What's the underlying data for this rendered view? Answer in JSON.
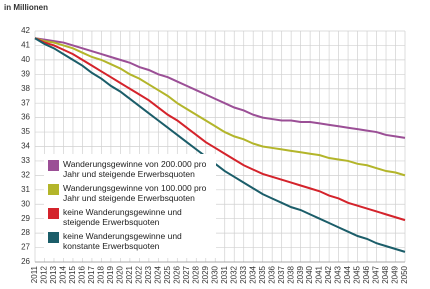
{
  "chart_data": {
    "type": "line",
    "y_label": "in Millionen",
    "x": [
      2011,
      2012,
      2013,
      2014,
      2015,
      2016,
      2017,
      2018,
      2019,
      2020,
      2021,
      2022,
      2023,
      2024,
      2025,
      2026,
      2027,
      2028,
      2029,
      2030,
      2031,
      2032,
      2033,
      2034,
      2035,
      2036,
      2037,
      2038,
      2039,
      2040,
      2041,
      2042,
      2043,
      2044,
      2045,
      2046,
      2047,
      2048,
      2049,
      2050
    ],
    "xlim": [
      2011,
      2050
    ],
    "ylim": [
      26,
      42
    ],
    "yticks": [
      26,
      27,
      28,
      29,
      30,
      31,
      32,
      33,
      34,
      35,
      36,
      37,
      38,
      39,
      40,
      41,
      42
    ],
    "grid": true,
    "series": [
      {
        "name": "Wanderungsgewinne von 200.000 pro Jahr und steigende Erwerbsquoten",
        "color": "#9b4f96",
        "values": [
          41.5,
          41.4,
          41.3,
          41.2,
          41.0,
          40.8,
          40.6,
          40.4,
          40.2,
          40.0,
          39.8,
          39.5,
          39.3,
          39.0,
          38.8,
          38.5,
          38.2,
          37.9,
          37.6,
          37.3,
          37.0,
          36.7,
          36.5,
          36.2,
          36.0,
          35.9,
          35.8,
          35.8,
          35.7,
          35.7,
          35.6,
          35.5,
          35.4,
          35.3,
          35.2,
          35.1,
          35.0,
          34.8,
          34.7,
          34.6
        ]
      },
      {
        "name": "Wanderungsgewinne von 100.000 pro Jahr und steigende Erwerbsquoten",
        "color": "#b3b52a",
        "values": [
          41.5,
          41.3,
          41.2,
          41.0,
          40.8,
          40.5,
          40.2,
          40.0,
          39.7,
          39.4,
          39.0,
          38.7,
          38.3,
          37.9,
          37.5,
          37.0,
          36.6,
          36.2,
          35.8,
          35.4,
          35.0,
          34.7,
          34.5,
          34.2,
          34.0,
          33.9,
          33.8,
          33.7,
          33.6,
          33.5,
          33.4,
          33.2,
          33.1,
          33.0,
          32.8,
          32.7,
          32.5,
          32.3,
          32.2,
          32.0
        ]
      },
      {
        "name": "keine Wanderungsgewinne und steigende Erwerbsquoten",
        "color": "#d4232b",
        "values": [
          41.5,
          41.2,
          41.0,
          40.7,
          40.4,
          40.0,
          39.6,
          39.2,
          38.8,
          38.4,
          38.0,
          37.6,
          37.2,
          36.7,
          36.2,
          35.8,
          35.3,
          34.8,
          34.3,
          33.9,
          33.5,
          33.1,
          32.7,
          32.4,
          32.1,
          31.9,
          31.7,
          31.5,
          31.3,
          31.1,
          30.9,
          30.6,
          30.4,
          30.1,
          29.9,
          29.7,
          29.5,
          29.3,
          29.1,
          28.9
        ]
      },
      {
        "name": "keine Wanderungsgewinne und konstante Erwerbsquoten",
        "color": "#1b5d69",
        "values": [
          41.5,
          41.1,
          40.8,
          40.4,
          40.0,
          39.6,
          39.1,
          38.7,
          38.2,
          37.8,
          37.3,
          36.8,
          36.3,
          35.8,
          35.3,
          34.8,
          34.3,
          33.8,
          33.3,
          32.8,
          32.3,
          31.9,
          31.5,
          31.1,
          30.7,
          30.4,
          30.1,
          29.8,
          29.6,
          29.3,
          29.0,
          28.7,
          28.4,
          28.1,
          27.8,
          27.6,
          27.3,
          27.1,
          26.9,
          26.7
        ]
      }
    ]
  }
}
